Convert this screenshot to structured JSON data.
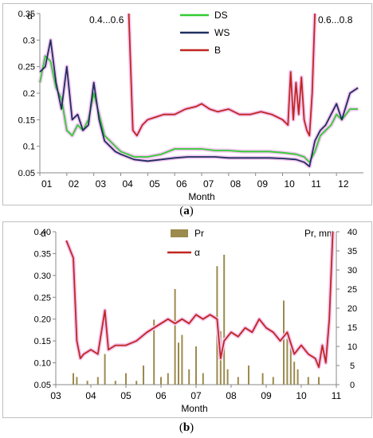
{
  "captions": {
    "a": "a",
    "b": "b"
  },
  "colors": {
    "DS": "#33cc33",
    "WS": "#1f2f5f",
    "B": "#c0261f",
    "alpha": "#c0261f",
    "Pr": "#9c8a4e",
    "halo": "#f3c6f1"
  },
  "chart_data": [
    {
      "type": "line",
      "xlabel": "Month",
      "ylabel": "α",
      "ylim": [
        0.05,
        0.35
      ],
      "yticks": [
        "0.05",
        "0.1",
        "0.15",
        "0.2",
        "0.25",
        "0.3",
        "0.35"
      ],
      "xticks": [
        "01",
        "02",
        "03",
        "04",
        "05",
        "06",
        "07",
        "08",
        "09",
        "10",
        "11",
        "12"
      ],
      "xlim": [
        1,
        13
      ],
      "legend": [
        "DS",
        "WS",
        "B"
      ],
      "legend_position": "top-center",
      "annotations": [
        "0.4...0.6",
        "0.6...0.8"
      ],
      "series": [
        {
          "name": "DS",
          "x": [
            1.0,
            1.2,
            1.4,
            1.6,
            1.8,
            2.0,
            2.2,
            2.4,
            2.6,
            2.8,
            3.0,
            3.2,
            3.4,
            3.6,
            3.8,
            4.0,
            4.5,
            5.0,
            5.5,
            6.0,
            6.5,
            7.0,
            7.5,
            8.0,
            8.5,
            9.0,
            9.5,
            10.0,
            10.5,
            10.8,
            11.0,
            11.2,
            11.4,
            11.6,
            11.8,
            12.0,
            12.2,
            12.5,
            12.8
          ],
          "y": [
            0.22,
            0.27,
            0.26,
            0.21,
            0.19,
            0.13,
            0.12,
            0.14,
            0.13,
            0.15,
            0.2,
            0.16,
            0.12,
            0.11,
            0.1,
            0.09,
            0.08,
            0.08,
            0.085,
            0.095,
            0.095,
            0.095,
            0.092,
            0.092,
            0.09,
            0.09,
            0.09,
            0.088,
            0.085,
            0.08,
            0.07,
            0.09,
            0.12,
            0.13,
            0.14,
            0.16,
            0.15,
            0.17,
            0.17
          ]
        },
        {
          "name": "WS",
          "x": [
            1.0,
            1.2,
            1.4,
            1.6,
            1.8,
            2.0,
            2.2,
            2.4,
            2.6,
            2.8,
            3.0,
            3.2,
            3.4,
            3.6,
            3.8,
            4.0,
            4.5,
            5.0,
            5.5,
            6.0,
            6.5,
            7.0,
            7.5,
            8.0,
            8.5,
            9.0,
            9.5,
            10.0,
            10.5,
            10.8,
            11.0,
            11.2,
            11.4,
            11.6,
            11.8,
            12.0,
            12.2,
            12.5,
            12.8
          ],
          "y": [
            0.24,
            0.25,
            0.3,
            0.22,
            0.17,
            0.25,
            0.15,
            0.16,
            0.13,
            0.14,
            0.22,
            0.15,
            0.11,
            0.1,
            0.09,
            0.085,
            0.075,
            0.072,
            0.075,
            0.078,
            0.08,
            0.08,
            0.08,
            0.078,
            0.078,
            0.078,
            0.078,
            0.077,
            0.075,
            0.07,
            0.062,
            0.11,
            0.13,
            0.14,
            0.16,
            0.18,
            0.15,
            0.2,
            0.21
          ]
        },
        {
          "name": "B",
          "x": [
            4.3,
            4.45,
            4.6,
            4.8,
            5.0,
            5.3,
            5.6,
            6.0,
            6.4,
            6.8,
            7.0,
            7.3,
            7.6,
            8.0,
            8.4,
            8.8,
            9.2,
            9.6,
            10.0,
            10.2,
            10.3,
            10.4,
            10.5,
            10.6,
            10.7,
            10.8,
            10.9,
            11.0,
            11.1,
            11.2
          ],
          "y": [
            0.35,
            0.13,
            0.12,
            0.14,
            0.15,
            0.155,
            0.16,
            0.16,
            0.17,
            0.175,
            0.18,
            0.17,
            0.165,
            0.17,
            0.16,
            0.16,
            0.165,
            0.16,
            0.15,
            0.14,
            0.24,
            0.15,
            0.22,
            0.16,
            0.23,
            0.15,
            0.13,
            0.12,
            0.2,
            0.35
          ]
        }
      ]
    },
    {
      "type": "bar+line",
      "xlabel": "Month",
      "ylabel_left": "α",
      "ylabel_right": "Pr, mm",
      "ylim_left": [
        0.05,
        0.4
      ],
      "ylim_right": [
        0,
        40
      ],
      "yticks_left": [
        "0.05",
        "0.10",
        "0.15",
        "0.20",
        "0.25",
        "0.30",
        "0.35",
        "0.40"
      ],
      "yticks_right": [
        "0",
        "5",
        "10",
        "15",
        "20",
        "25",
        "30",
        "35",
        "40"
      ],
      "xticks": [
        "03",
        "04",
        "05",
        "06",
        "07",
        "08",
        "09",
        "10",
        "11"
      ],
      "xlim": [
        3,
        11
      ],
      "legend": [
        "Pr",
        "α"
      ],
      "legend_position": "top-center",
      "series": [
        {
          "name": "α",
          "x": [
            3.3,
            3.4,
            3.5,
            3.6,
            3.7,
            3.8,
            4.0,
            4.2,
            4.4,
            4.5,
            4.7,
            5.0,
            5.3,
            5.6,
            5.8,
            6.0,
            6.2,
            6.4,
            6.6,
            6.8,
            7.0,
            7.2,
            7.4,
            7.6,
            7.7,
            7.8,
            8.0,
            8.2,
            8.4,
            8.6,
            8.8,
            9.0,
            9.2,
            9.4,
            9.6,
            9.8,
            10.0,
            10.2,
            10.4,
            10.5,
            10.6,
            10.7,
            10.8,
            10.9
          ],
          "y": [
            0.38,
            0.36,
            0.34,
            0.15,
            0.11,
            0.12,
            0.13,
            0.12,
            0.22,
            0.13,
            0.14,
            0.14,
            0.15,
            0.17,
            0.18,
            0.19,
            0.2,
            0.19,
            0.2,
            0.19,
            0.21,
            0.2,
            0.21,
            0.2,
            0.11,
            0.15,
            0.17,
            0.16,
            0.18,
            0.17,
            0.2,
            0.18,
            0.17,
            0.15,
            0.17,
            0.12,
            0.14,
            0.12,
            0.11,
            0.09,
            0.14,
            0.1,
            0.2,
            0.4
          ]
        },
        {
          "name": "Pr",
          "x": [
            3.5,
            3.6,
            3.9,
            4.2,
            4.4,
            4.7,
            5.0,
            5.3,
            5.5,
            5.8,
            6.0,
            6.2,
            6.4,
            6.5,
            6.6,
            6.8,
            7.0,
            7.2,
            7.6,
            7.7,
            7.8,
            7.9,
            8.2,
            8.5,
            8.9,
            9.2,
            9.5,
            9.6,
            9.7,
            9.8,
            9.9,
            10.2,
            10.5
          ],
          "y": [
            3,
            2,
            1,
            2,
            8,
            1,
            3,
            1,
            5,
            17,
            2,
            3,
            25,
            11,
            13,
            4,
            10,
            3,
            31,
            14,
            34,
            4,
            2,
            5,
            3,
            2,
            22,
            12,
            10,
            6,
            4,
            2,
            2
          ]
        }
      ]
    }
  ]
}
